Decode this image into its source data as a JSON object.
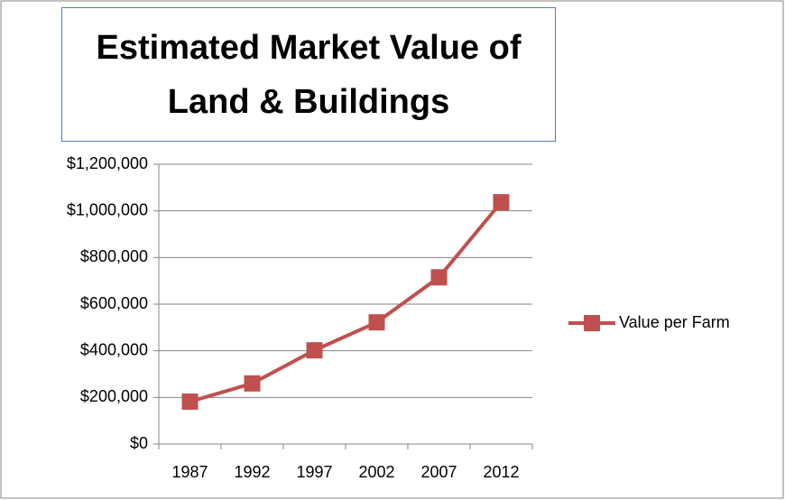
{
  "chart_data": {
    "type": "line",
    "title": "Estimated Market Value of Land & Buildings",
    "categories": [
      "1987",
      "1992",
      "1997",
      "2002",
      "2007",
      "2012"
    ],
    "series": [
      {
        "name": "Value per Farm",
        "color": "#c0504d",
        "values": [
          182000,
          260000,
          402000,
          522000,
          715000,
          1037000
        ]
      }
    ],
    "ylim": [
      0,
      1200000
    ],
    "yticks": [
      {
        "value": 0,
        "label": "$0"
      },
      {
        "value": 200000,
        "label": "$200,000"
      },
      {
        "value": 400000,
        "label": "$400,000"
      },
      {
        "value": 600000,
        "label": "$600,000"
      },
      {
        "value": 800000,
        "label": "$800,000"
      },
      {
        "value": 1000000,
        "label": "$1,000,000"
      },
      {
        "value": 1200000,
        "label": "$1,200,000"
      }
    ],
    "grid": true,
    "legend": "right"
  }
}
